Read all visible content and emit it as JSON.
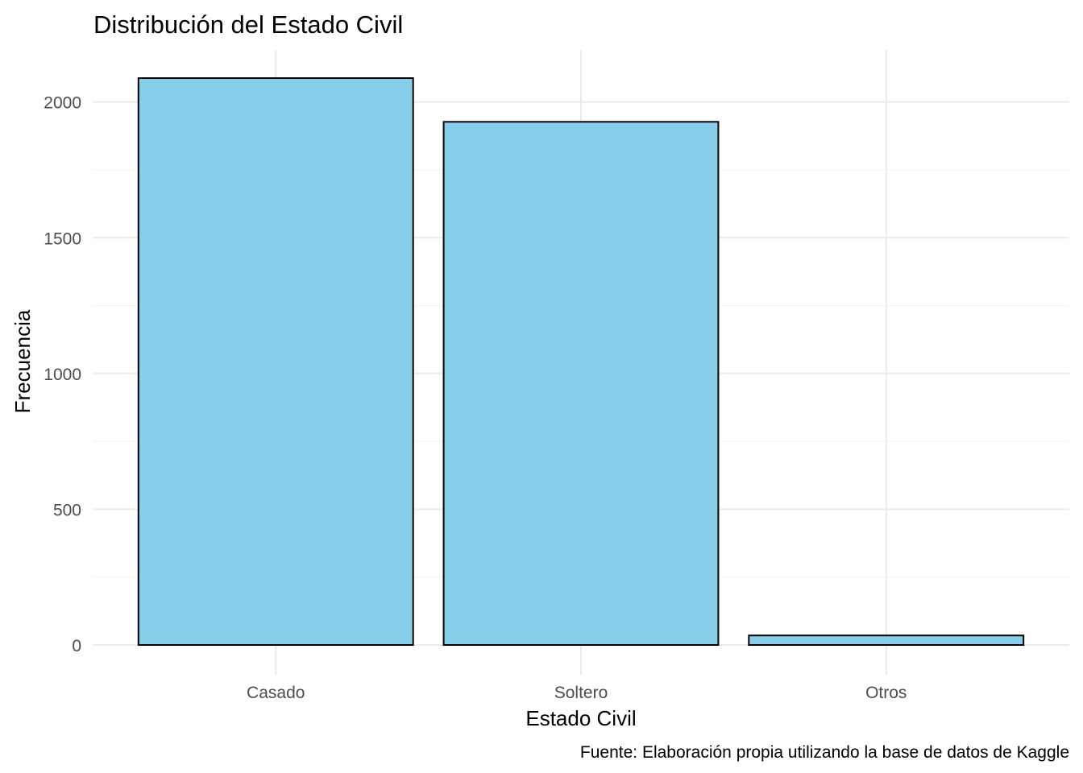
{
  "chart_data": {
    "type": "bar",
    "title": "Distribución del Estado Civil",
    "xlabel": "Estado Civil",
    "ylabel": "Frecuencia",
    "caption": "Fuente: Elaboración propia utilizando la base de datos de Kaggle",
    "categories": [
      "Casado",
      "Soltero",
      "Otros"
    ],
    "values": [
      2088,
      1927,
      35
    ],
    "ylim": [
      0,
      2200
    ],
    "yticks": [
      0,
      500,
      1000,
      1500,
      2000
    ],
    "y_tick_labels": [
      "0",
      "500",
      "1000",
      "1500",
      "2000"
    ],
    "grid": true,
    "legend": "none",
    "colors": {
      "bar_fill": "#87CEEB",
      "bar_stroke": "#000000",
      "grid_major": "#ebebeb",
      "grid_minor": "#f3f3f3",
      "tick_text": "#4d4d4d"
    }
  }
}
